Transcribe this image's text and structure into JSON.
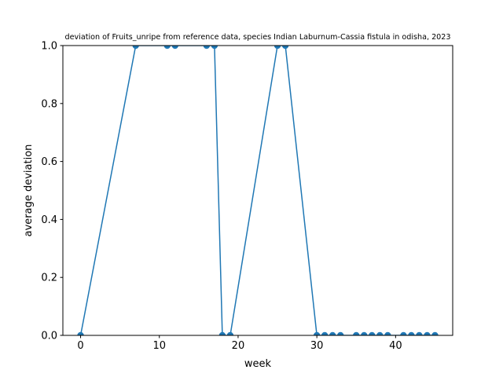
{
  "chart_data": {
    "type": "line",
    "title": "deviation of Fruits_unripe from reference data, species Indian Laburnum-Cassia fistula in odisha, 2023",
    "xlabel": "week",
    "ylabel": "average deviation",
    "xlim": [
      -2.25,
      47.25
    ],
    "ylim": [
      0,
      1
    ],
    "xticks": [
      0,
      10,
      20,
      30,
      40
    ],
    "yticks": [
      0.0,
      0.2,
      0.4,
      0.6,
      0.8,
      1.0
    ],
    "ytick_labels": [
      "0.0",
      "0.2",
      "0.4",
      "0.6",
      "0.8",
      "1.0"
    ],
    "grid": false,
    "legend": null,
    "series_color": "#1f77b4",
    "marker": "circle",
    "x": [
      0,
      7,
      11,
      12,
      16,
      17,
      18,
      19,
      25,
      26,
      30,
      31,
      32,
      33,
      35,
      36,
      37,
      38,
      39,
      41,
      42,
      43,
      44,
      45
    ],
    "y": [
      0,
      1,
      1,
      1,
      1,
      1,
      0,
      0,
      1,
      1,
      0,
      0,
      0,
      0,
      0,
      0,
      0,
      0,
      0,
      0,
      0,
      0,
      0,
      0
    ]
  }
}
